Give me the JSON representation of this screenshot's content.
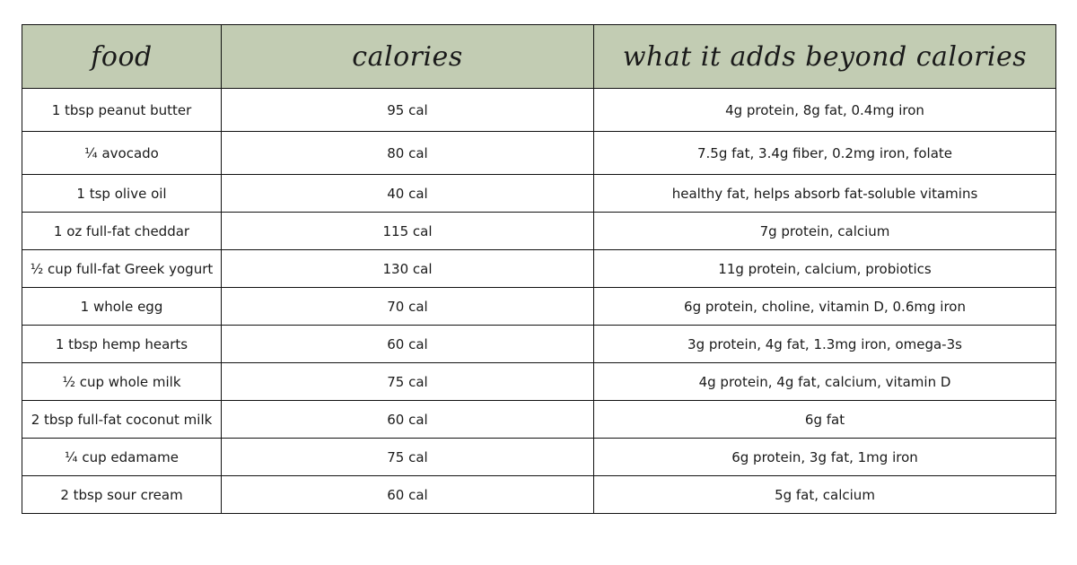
{
  "table": {
    "headers": {
      "food": "food",
      "calories": "calories",
      "adds": "what it adds beyond calories"
    },
    "rows": [
      {
        "food": "1 tbsp peanut butter",
        "calories": "95 cal",
        "adds": "4g protein, 8g fat, 0.4mg iron"
      },
      {
        "food": "¼ avocado",
        "calories": "80 cal",
        "adds": "7.5g fat, 3.4g fiber, 0.2mg iron, folate"
      },
      {
        "food": "1 tsp olive oil",
        "calories": "40 cal",
        "adds": "healthy fat, helps absorb fat-soluble vitamins"
      },
      {
        "food": "1 oz full-fat cheddar",
        "calories": "115 cal",
        "adds": "7g protein, calcium"
      },
      {
        "food": "½ cup full-fat Greek yogurt",
        "calories": "130 cal",
        "adds": "11g protein, calcium, probiotics"
      },
      {
        "food": "1 whole egg",
        "calories": "70 cal",
        "adds": "6g protein, choline, vitamin D, 0.6mg iron"
      },
      {
        "food": "1 tbsp hemp hearts",
        "calories": "60 cal",
        "adds": "3g protein, 4g fat, 1.3mg iron, omega-3s"
      },
      {
        "food": "½ cup whole milk",
        "calories": "75 cal",
        "adds": "4g protein, 4g fat, calcium, vitamin D"
      },
      {
        "food": "2 tbsp full-fat coconut milk",
        "calories": "60 cal",
        "adds": "6g fat"
      },
      {
        "food": "¼ cup edamame",
        "calories": "75 cal",
        "adds": "6g protein, 3g fat, 1mg iron"
      },
      {
        "food": "2 tbsp sour cream",
        "calories": "60 cal",
        "adds": "5g fat, calcium"
      }
    ]
  }
}
